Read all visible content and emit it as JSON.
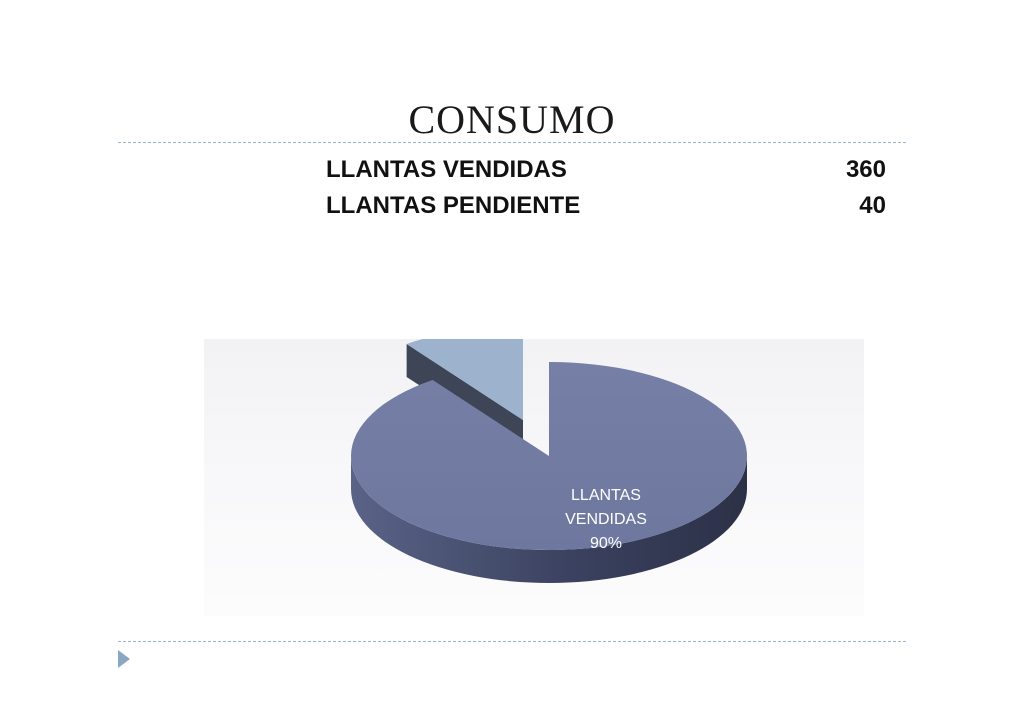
{
  "slide": {
    "title": "CONSUMO"
  },
  "table": {
    "rows": [
      {
        "label": "LLANTAS VENDIDAS",
        "value": "360"
      },
      {
        "label": "LLANTAS PENDIENTE",
        "value": "40"
      }
    ]
  },
  "colors": {
    "vendidas_top": "#6e789f",
    "vendidas_side": "#3b4260",
    "pendiente_top": "#9db3cd",
    "pendiente_side": "#3e4556",
    "divider": "#9bb2c8",
    "nav_arrow": "#8aa6c1"
  },
  "icons": {
    "nav": "triangle-right-icon"
  },
  "chart_data": {
    "type": "pie",
    "three_d": true,
    "exploded": "LLANTAS PENDIENTE",
    "categories": [
      "LLANTAS VENDIDAS",
      "LLANTAS PENDIENTE"
    ],
    "values": [
      360,
      40
    ],
    "data_labels": [
      {
        "lines": [
          "LLANTAS",
          "VENDIDAS",
          "90%"
        ]
      },
      null
    ],
    "legend": false
  }
}
